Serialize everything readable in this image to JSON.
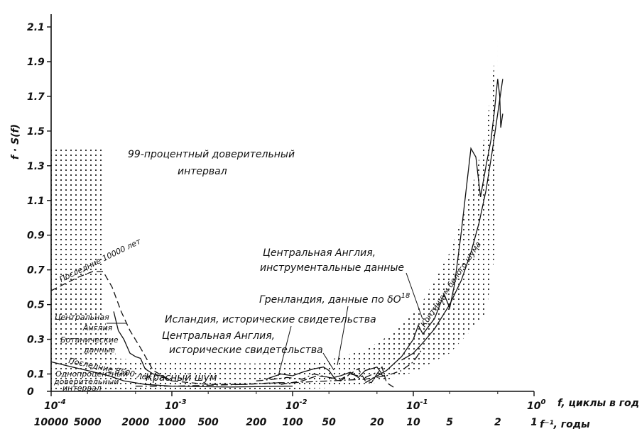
{
  "chart_data": {
    "type": "line",
    "x_scale": "log",
    "xlim": [
      0.0001,
      1
    ],
    "ylim": [
      0,
      2.1
    ],
    "y_axis_label": "f · S(f)",
    "x_axis_label_top": "f, циклы в год",
    "x_axis_label_bottom": "f⁻¹, годы",
    "y_ticks": [
      "2.1",
      "1.9",
      "1.7",
      "1.5",
      "1.3",
      "1.1",
      "0.9",
      "0.7",
      "0.5",
      "0.3",
      "0.1",
      "0"
    ],
    "y_tick_values": [
      2.1,
      1.9,
      1.7,
      1.5,
      1.3,
      1.1,
      0.9,
      0.7,
      0.5,
      0.3,
      0.1,
      0
    ],
    "x_ticks_top": [
      {
        "value": 0.0001,
        "base": "10",
        "exp": "-4"
      },
      {
        "value": 0.001,
        "base": "10",
        "exp": "-3"
      },
      {
        "value": 0.01,
        "base": "10",
        "exp": "-2"
      },
      {
        "value": 0.1,
        "base": "10",
        "exp": "-1"
      },
      {
        "value": 1,
        "base": "10",
        "exp": "0"
      }
    ],
    "x_ticks_bottom": [
      {
        "value": 0.0001,
        "label": "10000"
      },
      {
        "value": 0.0002,
        "label": "5000"
      },
      {
        "value": 0.0005,
        "label": "2000"
      },
      {
        "value": 0.001,
        "label": "1000"
      },
      {
        "value": 0.002,
        "label": "500"
      },
      {
        "value": 0.005,
        "label": "200"
      },
      {
        "value": 0.01,
        "label": "100"
      },
      {
        "value": 0.02,
        "label": "50"
      },
      {
        "value": 0.05,
        "label": "20"
      },
      {
        "value": 0.1,
        "label": "10"
      },
      {
        "value": 0.2,
        "label": "5"
      },
      {
        "value": 0.5,
        "label": "2"
      },
      {
        "value": 1,
        "label": "1"
      }
    ],
    "bands": [
      {
        "name": "99-процентный доверительный интервал",
        "upper": [
          [
            0.0001,
            1.4
          ],
          [
            0.00028,
            1.4
          ],
          [
            0.00028,
            0.4
          ],
          [
            0.00035,
            0.19
          ],
          [
            0.0008,
            0.17
          ],
          [
            0.005,
            0.16
          ],
          [
            0.02,
            0.18
          ],
          [
            0.04,
            0.24
          ],
          [
            0.07,
            0.34
          ],
          [
            0.12,
            0.52
          ],
          [
            0.2,
            0.8
          ],
          [
            0.3,
            1.15
          ],
          [
            0.4,
            1.5
          ],
          [
            0.5,
            2.05
          ]
        ],
        "lower": [
          [
            0.5,
            0.9
          ],
          [
            0.4,
            0.45
          ],
          [
            0.3,
            0.35
          ],
          [
            0.2,
            0.22
          ],
          [
            0.1,
            0.11
          ],
          [
            0.05,
            0.05
          ],
          [
            0.02,
            0.02
          ],
          [
            0.005,
            0
          ],
          [
            0.0001,
            0
          ]
        ]
      }
    ],
    "series": [
      {
        "name": "Последние 10000 лет",
        "style": "dashed",
        "points": [
          [
            0.0001,
            0.58
          ],
          [
            0.00013,
            0.62
          ],
          [
            0.00017,
            0.66
          ],
          [
            0.00022,
            0.69
          ],
          [
            0.00027,
            0.69
          ],
          [
            0.00032,
            0.6
          ],
          [
            0.00038,
            0.46
          ],
          [
            0.00045,
            0.35
          ],
          [
            0.00055,
            0.25
          ],
          [
            0.0007,
            0.12
          ],
          [
            0.001,
            0.06
          ],
          [
            0.002,
            0.04
          ],
          [
            0.004,
            0.04
          ],
          [
            0.008,
            0.05
          ]
        ]
      },
      {
        "name": "Центральная Англия, ботанические данные, последние 8500 лет",
        "style": "solid",
        "points": [
          [
            0.00033,
            0.46
          ],
          [
            0.00036,
            0.35
          ],
          [
            0.0004,
            0.3
          ],
          [
            0.00045,
            0.22
          ],
          [
            0.0005,
            0.2
          ],
          [
            0.00055,
            0.19
          ],
          [
            0.0006,
            0.13
          ],
          [
            0.0007,
            0.1
          ],
          [
            0.0008,
            0.09
          ],
          [
            0.001,
            0.06
          ]
        ]
      },
      {
        "name": "Однопроцентный доверительный интервал",
        "style": "solid",
        "points": [
          [
            0.0001,
            0.17
          ],
          [
            0.00015,
            0.14
          ],
          [
            0.0002,
            0.12
          ],
          [
            0.0003,
            0.09
          ],
          [
            0.0004,
            0.06
          ],
          [
            0.0006,
            0.04
          ],
          [
            0.001,
            0.03
          ],
          [
            0.003,
            0.025
          ],
          [
            0.01,
            0.03
          ]
        ]
      },
      {
        "name": "Красный шум",
        "style": "dashdot",
        "points": [
          [
            0.0005,
            0.03
          ],
          [
            0.001,
            0.03
          ],
          [
            0.002,
            0.035
          ],
          [
            0.004,
            0.04
          ],
          [
            0.007,
            0.05
          ],
          [
            0.01,
            0.05
          ],
          [
            0.02,
            0.06
          ],
          [
            0.04,
            0.07
          ],
          [
            0.06,
            0.09
          ],
          [
            0.08,
            0.12
          ],
          [
            0.1,
            0.17
          ],
          [
            0.12,
            0.25
          ]
        ]
      },
      {
        "name": "Исландия, исторические свидетельства",
        "style": "dashed",
        "points": [
          [
            0.008,
            0.04
          ],
          [
            0.012,
            0.06
          ],
          [
            0.016,
            0.09
          ],
          [
            0.02,
            0.08
          ],
          [
            0.025,
            0.07
          ],
          [
            0.03,
            0.1
          ],
          [
            0.035,
            0.13
          ],
          [
            0.04,
            0.06
          ],
          [
            0.045,
            0.05
          ],
          [
            0.05,
            0.1
          ],
          [
            0.055,
            0.14
          ],
          [
            0.06,
            0.05
          ],
          [
            0.07,
            0.02
          ]
        ]
      },
      {
        "name": "Гренландия, данные по δO18",
        "style": "solid",
        "points": [
          [
            0.006,
            0.07
          ],
          [
            0.008,
            0.1
          ],
          [
            0.01,
            0.09
          ],
          [
            0.012,
            0.11
          ],
          [
            0.015,
            0.13
          ],
          [
            0.018,
            0.14
          ],
          [
            0.02,
            0.12
          ],
          [
            0.022,
            0.08
          ],
          [
            0.025,
            0.09
          ],
          [
            0.03,
            0.11
          ],
          [
            0.035,
            0.08
          ],
          [
            0.04,
            0.12
          ],
          [
            0.05,
            0.14
          ],
          [
            0.055,
            0.1
          ]
        ]
      },
      {
        "name": "Центральная Англия, исторические свидетельства",
        "style": "dashdot",
        "points": [
          [
            0.005,
            0.06
          ],
          [
            0.007,
            0.07
          ],
          [
            0.009,
            0.08
          ],
          [
            0.012,
            0.07
          ],
          [
            0.015,
            0.1
          ],
          [
            0.02,
            0.08
          ],
          [
            0.025,
            0.06
          ],
          [
            0.03,
            0.1
          ],
          [
            0.04,
            0.08
          ],
          [
            0.05,
            0.11
          ],
          [
            0.06,
            0.08
          ]
        ]
      },
      {
        "name": "Центральная Англия, инструментальные данные",
        "style": "solid",
        "points": [
          [
            0.04,
            0.05
          ],
          [
            0.06,
            0.12
          ],
          [
            0.08,
            0.2
          ],
          [
            0.1,
            0.3
          ],
          [
            0.11,
            0.38
          ],
          [
            0.12,
            0.33
          ],
          [
            0.15,
            0.42
          ],
          [
            0.18,
            0.56
          ],
          [
            0.2,
            0.48
          ],
          [
            0.22,
            0.62
          ],
          [
            0.25,
            0.92
          ],
          [
            0.28,
            1.22
          ],
          [
            0.3,
            1.4
          ],
          [
            0.33,
            1.35
          ],
          [
            0.36,
            1.12
          ],
          [
            0.4,
            1.3
          ],
          [
            0.44,
            1.45
          ],
          [
            0.47,
            1.62
          ],
          [
            0.5,
            1.8
          ],
          [
            0.52,
            1.7
          ],
          [
            0.53,
            1.52
          ],
          [
            0.55,
            1.6
          ]
        ]
      },
      {
        "name": "Континуум белого шума",
        "style": "solid",
        "points": [
          [
            0.08,
            0.18
          ],
          [
            0.1,
            0.22
          ],
          [
            0.12,
            0.28
          ],
          [
            0.15,
            0.36
          ],
          [
            0.2,
            0.5
          ],
          [
            0.25,
            0.64
          ],
          [
            0.3,
            0.8
          ],
          [
            0.35,
            0.97
          ],
          [
            0.4,
            1.16
          ],
          [
            0.45,
            1.38
          ],
          [
            0.5,
            1.6
          ],
          [
            0.55,
            1.8
          ]
        ]
      }
    ],
    "annotations": {
      "confidence_interval_line1": "99-процентный доверительный",
      "confidence_interval_line2": "интервал",
      "last10000": "Последние 10000 лет",
      "central_england_line1": "Центральная",
      "central_england_line2": "Англия",
      "botanical_line1": "Ботанические",
      "botanical_line2": "данные",
      "last8500": "Последние 8500 лет",
      "one_percent_line1": "Однопроцентный",
      "one_percent_line2": "доверительный",
      "one_percent_line3": "интервал",
      "red_noise": "Красный шум",
      "iceland": "Исландия, исторические свидетельства",
      "greenland": "Гренландия, данные по δO",
      "greenland_sup": "18",
      "ce_hist_line1": "Центральная Англия,",
      "ce_hist_line2": "исторические свидетельства",
      "ce_instr_line1": "Центральная Англия,",
      "ce_instr_line2": "инструментальные данные",
      "white_noise": "Континуум белого шума"
    }
  }
}
